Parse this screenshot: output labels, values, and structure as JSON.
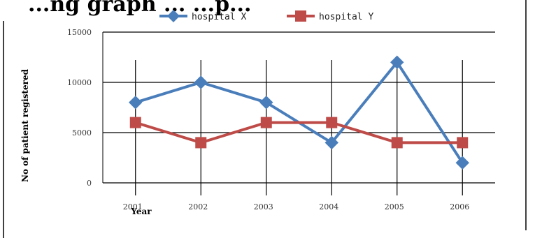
{
  "chart_data": {
    "type": "line",
    "title": "...ng graph ... ...p...",
    "ylabel": "No of patient registered",
    "xlabel": "Year",
    "categories": [
      "2001",
      "2002",
      "2003",
      "2004",
      "2005",
      "2006"
    ],
    "ylim": [
      0,
      15000
    ],
    "yticks": [
      0,
      5000,
      10000,
      15000
    ],
    "grid": true,
    "legend_position": "top",
    "series": [
      {
        "name": "hospital X",
        "values": [
          8000,
          10000,
          8000,
          4000,
          12000,
          2000
        ],
        "color": "#4a7ebb",
        "marker": "diamond"
      },
      {
        "name": "hospital Y",
        "values": [
          6000,
          4000,
          6000,
          6000,
          4000,
          4000
        ],
        "color": "#be4b48",
        "marker": "square"
      }
    ]
  }
}
